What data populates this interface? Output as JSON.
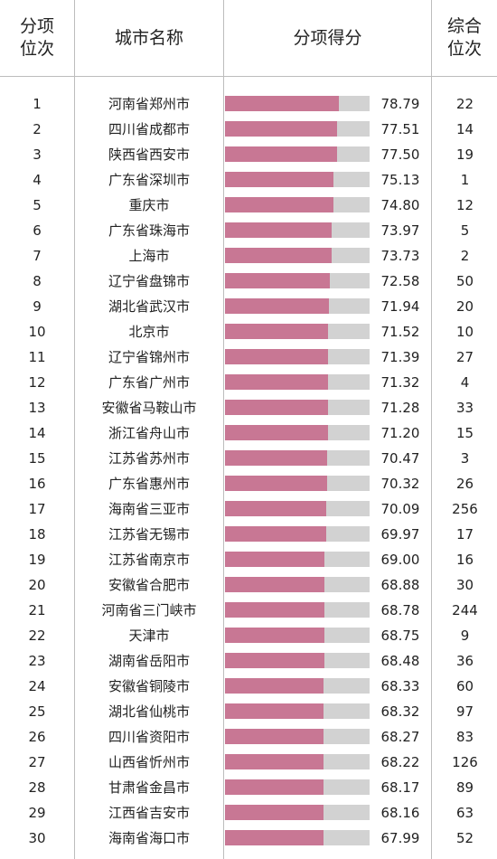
{
  "headers": {
    "rank": "分项\n位次",
    "city": "城市名称",
    "score": "分项得分",
    "overall": "综合\n位次"
  },
  "chart_data": {
    "type": "bar",
    "orientation": "horizontal",
    "rows": [
      {
        "rank": "1",
        "city": "河南省郑州市",
        "score": "78.79",
        "overall": "22"
      },
      {
        "rank": "2",
        "city": "四川省成都市",
        "score": "77.51",
        "overall": "14"
      },
      {
        "rank": "3",
        "city": "陕西省西安市",
        "score": "77.50",
        "overall": "19"
      },
      {
        "rank": "4",
        "city": "广东省深圳市",
        "score": "75.13",
        "overall": "1"
      },
      {
        "rank": "5",
        "city": "重庆市",
        "score": "74.80",
        "overall": "12"
      },
      {
        "rank": "6",
        "city": "广东省珠海市",
        "score": "73.97",
        "overall": "5"
      },
      {
        "rank": "7",
        "city": "上海市",
        "score": "73.73",
        "overall": "2"
      },
      {
        "rank": "8",
        "city": "辽宁省盘锦市",
        "score": "72.58",
        "overall": "50"
      },
      {
        "rank": "9",
        "city": "湖北省武汉市",
        "score": "71.94",
        "overall": "20"
      },
      {
        "rank": "10",
        "city": "北京市",
        "score": "71.52",
        "overall": "10"
      },
      {
        "rank": "11",
        "city": "辽宁省锦州市",
        "score": "71.39",
        "overall": "27"
      },
      {
        "rank": "12",
        "city": "广东省广州市",
        "score": "71.32",
        "overall": "4"
      },
      {
        "rank": "13",
        "city": "安徽省马鞍山市",
        "score": "71.28",
        "overall": "33"
      },
      {
        "rank": "14",
        "city": "浙江省舟山市",
        "score": "71.20",
        "overall": "15"
      },
      {
        "rank": "15",
        "city": "江苏省苏州市",
        "score": "70.47",
        "overall": "3"
      },
      {
        "rank": "16",
        "city": "广东省惠州市",
        "score": "70.32",
        "overall": "26"
      },
      {
        "rank": "17",
        "city": "海南省三亚市",
        "score": "70.09",
        "overall": "256"
      },
      {
        "rank": "18",
        "city": "江苏省无锡市",
        "score": "69.97",
        "overall": "17"
      },
      {
        "rank": "19",
        "city": "江苏省南京市",
        "score": "69.00",
        "overall": "16"
      },
      {
        "rank": "20",
        "city": "安徽省合肥市",
        "score": "68.88",
        "overall": "30"
      },
      {
        "rank": "21",
        "city": "河南省三门峡市",
        "score": "68.78",
        "overall": "244"
      },
      {
        "rank": "22",
        "city": "天津市",
        "score": "68.75",
        "overall": "9"
      },
      {
        "rank": "23",
        "city": "湖南省岳阳市",
        "score": "68.48",
        "overall": "36"
      },
      {
        "rank": "24",
        "city": "安徽省铜陵市",
        "score": "68.33",
        "overall": "60"
      },
      {
        "rank": "25",
        "city": "湖北省仙桃市",
        "score": "68.32",
        "overall": "97"
      },
      {
        "rank": "26",
        "city": "四川省资阳市",
        "score": "68.27",
        "overall": "83"
      },
      {
        "rank": "27",
        "city": "山西省忻州市",
        "score": "68.22",
        "overall": "126"
      },
      {
        "rank": "28",
        "city": "甘肃省金昌市",
        "score": "68.17",
        "overall": "89"
      },
      {
        "rank": "29",
        "city": "江西省吉安市",
        "score": "68.16",
        "overall": "63"
      },
      {
        "rank": "30",
        "city": "海南省海口市",
        "score": "67.99",
        "overall": "52"
      }
    ],
    "bar_scale_max": 100,
    "bar_color": "#c87794",
    "bar_track_color": "#d2d2d2"
  }
}
